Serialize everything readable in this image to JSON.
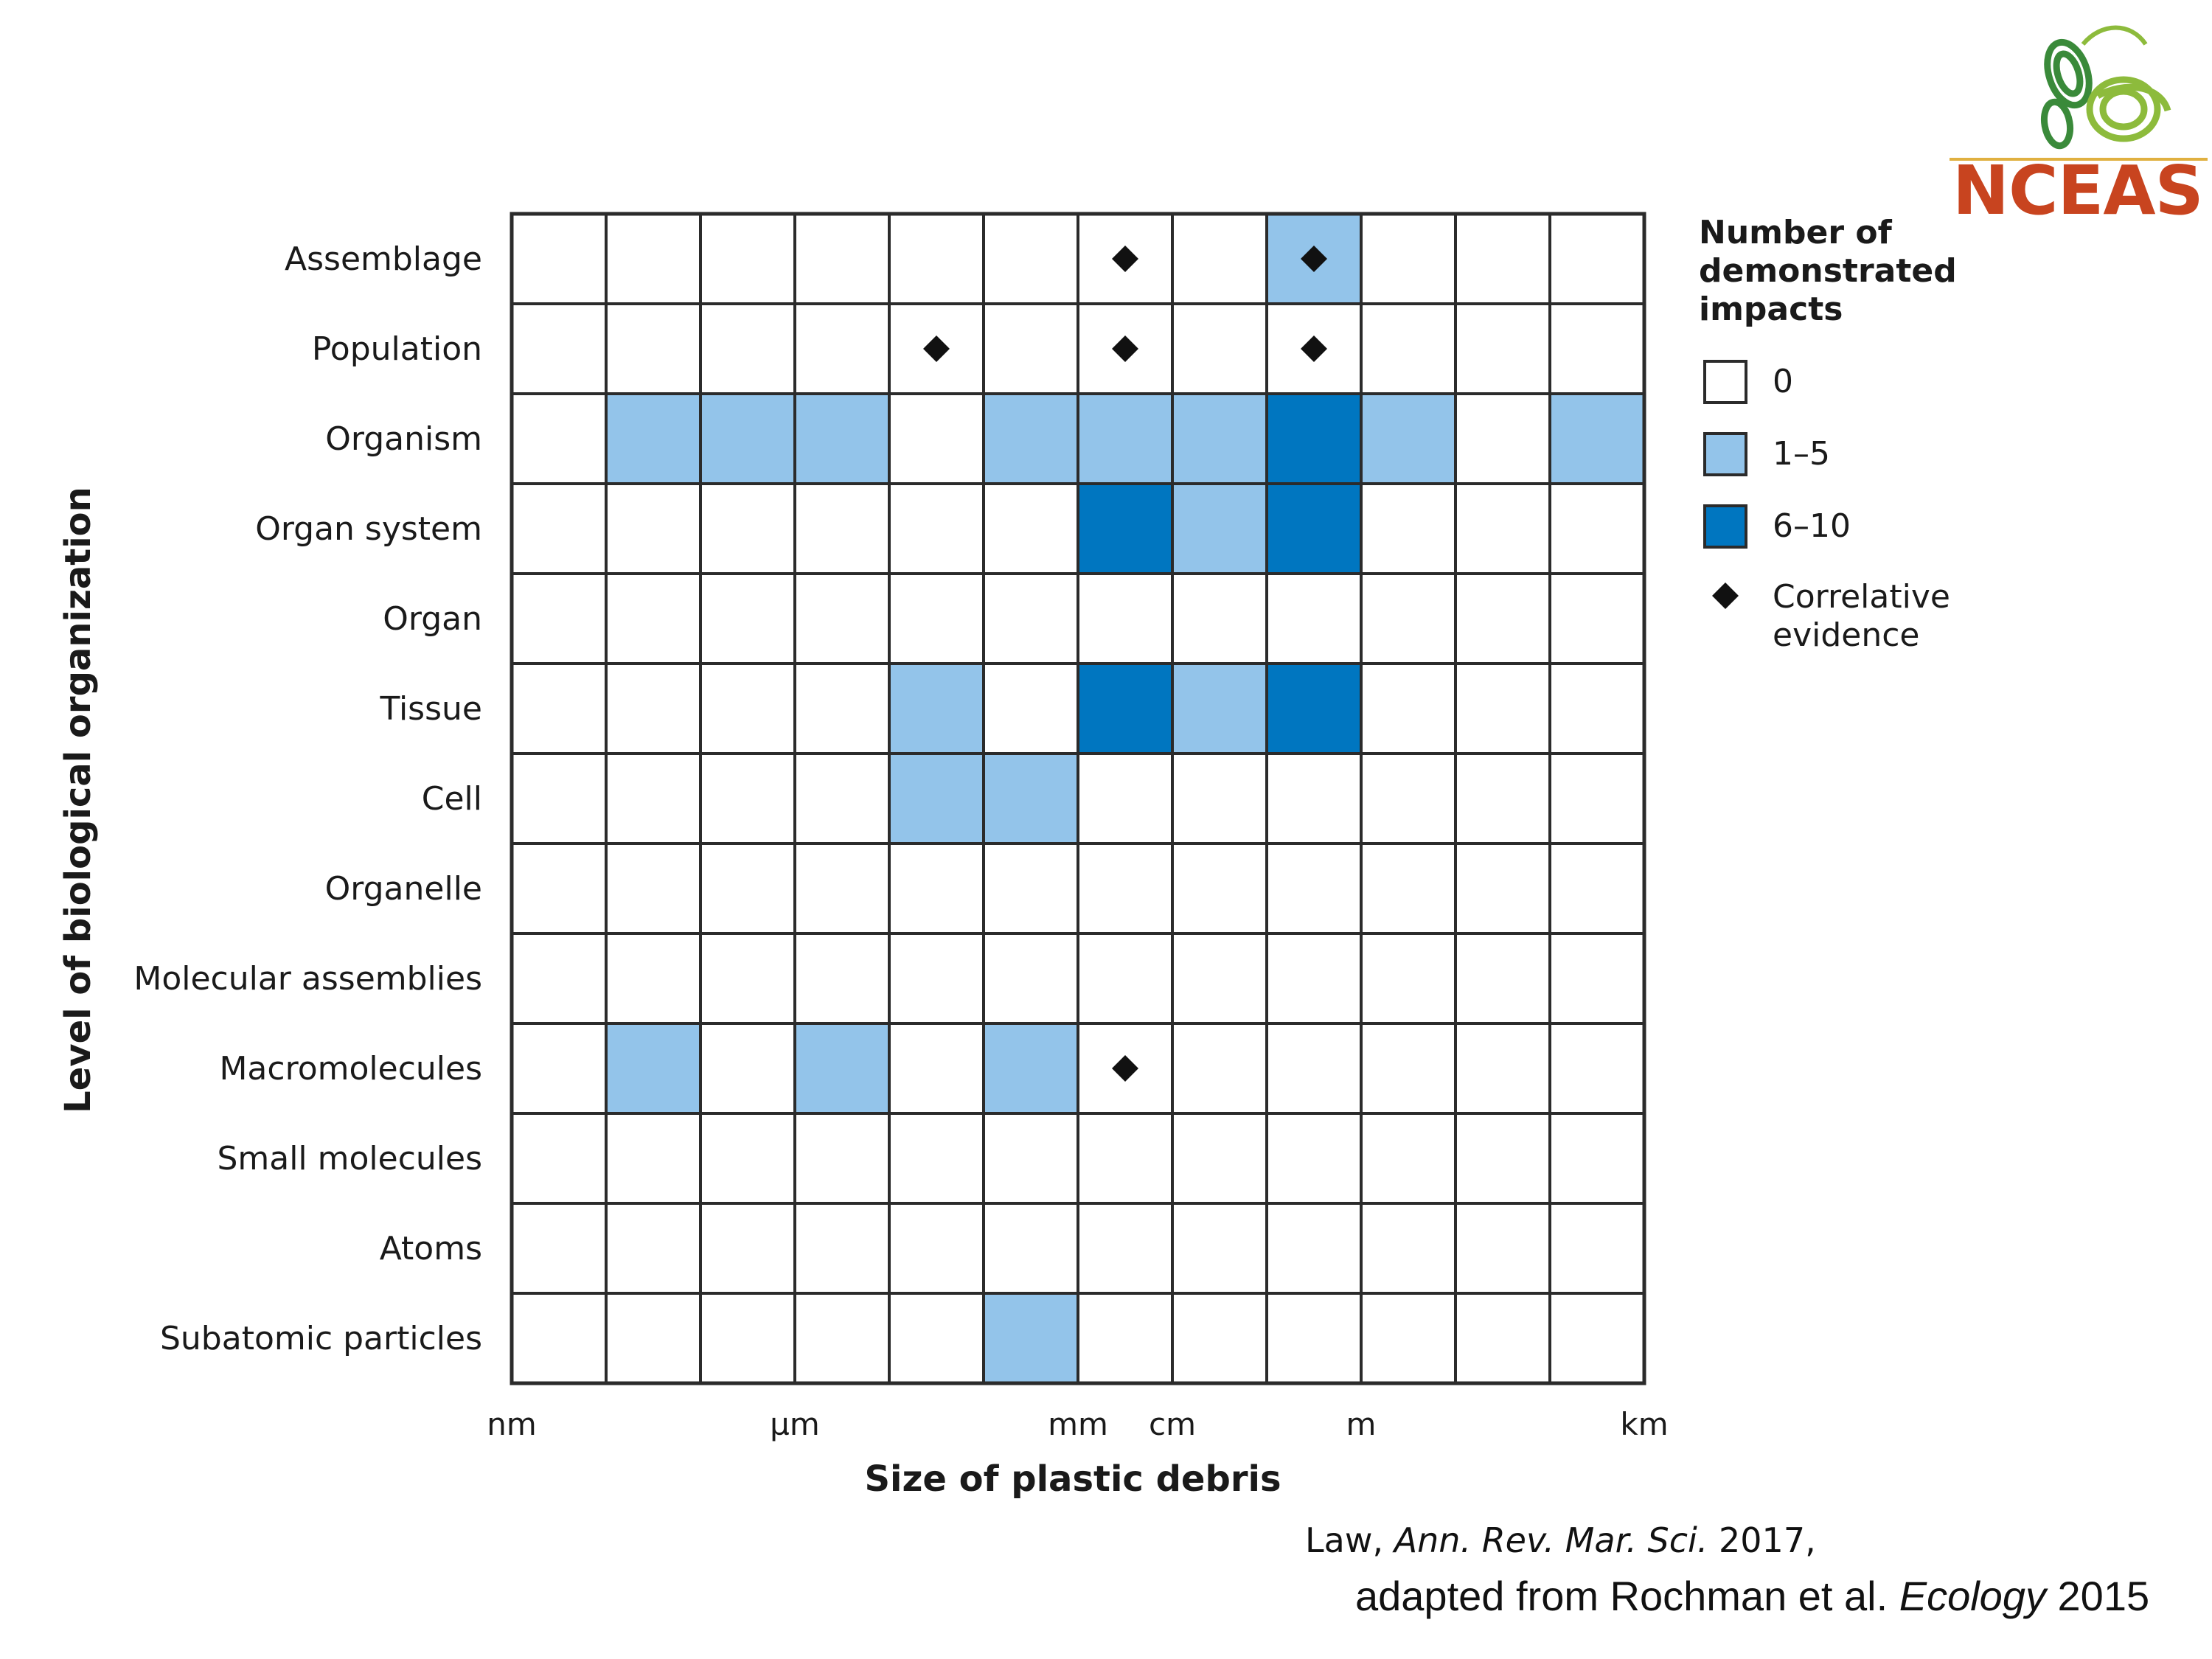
{
  "chart_data": {
    "type": "heatmap",
    "title": "",
    "xlabel": "Size of plastic debris",
    "ylabel": "Level of biological organization",
    "rows": [
      "Assemblage",
      "Population",
      "Organism",
      "Organ system",
      "Organ",
      "Tissue",
      "Cell",
      "Organelle",
      "Molecular assemblies",
      "Macromolecules",
      "Small molecules",
      "Atoms",
      "Subatomic particles"
    ],
    "column_count": 12,
    "x_ticks": [
      {
        "label": "nm",
        "boundary": 0
      },
      {
        "label": "µm",
        "boundary": 3
      },
      {
        "label": "mm",
        "boundary": 6
      },
      {
        "label": "cm",
        "boundary": 7
      },
      {
        "label": "m",
        "boundary": 9
      },
      {
        "label": "km",
        "boundary": 12
      }
    ],
    "categories_legend": [
      "0",
      "1–5",
      "6–10"
    ],
    "cells": [
      [
        0,
        0,
        0,
        0,
        0,
        0,
        0,
        0,
        1,
        0,
        0,
        0
      ],
      [
        0,
        0,
        0,
        0,
        0,
        0,
        0,
        0,
        0,
        0,
        0,
        0
      ],
      [
        0,
        1,
        1,
        1,
        0,
        1,
        1,
        1,
        2,
        1,
        0,
        1
      ],
      [
        0,
        0,
        0,
        0,
        0,
        0,
        2,
        1,
        2,
        0,
        0,
        0
      ],
      [
        0,
        0,
        0,
        0,
        0,
        0,
        0,
        0,
        0,
        0,
        0,
        0
      ],
      [
        0,
        0,
        0,
        0,
        1,
        0,
        2,
        1,
        2,
        0,
        0,
        0
      ],
      [
        0,
        0,
        0,
        0,
        1,
        1,
        0,
        0,
        0,
        0,
        0,
        0
      ],
      [
        0,
        0,
        0,
        0,
        0,
        0,
        0,
        0,
        0,
        0,
        0,
        0
      ],
      [
        0,
        0,
        0,
        0,
        0,
        0,
        0,
        0,
        0,
        0,
        0,
        0
      ],
      [
        0,
        1,
        0,
        1,
        0,
        1,
        0,
        0,
        0,
        0,
        0,
        0
      ],
      [
        0,
        0,
        0,
        0,
        0,
        0,
        0,
        0,
        0,
        0,
        0,
        0
      ],
      [
        0,
        0,
        0,
        0,
        0,
        0,
        0,
        0,
        0,
        0,
        0,
        0
      ],
      [
        0,
        0,
        0,
        0,
        0,
        1,
        0,
        0,
        0,
        0,
        0,
        0
      ]
    ],
    "correlative_evidence": [
      {
        "row": "Assemblage",
        "col": 6
      },
      {
        "row": "Assemblage",
        "col": 8
      },
      {
        "row": "Population",
        "col": 4
      },
      {
        "row": "Population",
        "col": 6
      },
      {
        "row": "Population",
        "col": 8
      },
      {
        "row": "Macromolecules",
        "col": 6
      }
    ],
    "colors": {
      "0": "#ffffff",
      "1–5": "#93c4ea",
      "6–10": "#0076c0"
    },
    "legend": {
      "title": [
        "Number of",
        "demonstrated",
        "impacts"
      ],
      "items": [
        "0",
        "1–5",
        "6–10"
      ],
      "marker_label": [
        "Correlative",
        "evidence"
      ],
      "placement": "right"
    }
  },
  "citation": {
    "line1_author": "Law, ",
    "line1_journal": "Ann. Rev. Mar. Sci.",
    "line1_year": " 2017,",
    "line2_prefix": "adapted from Rochman et al. ",
    "line2_journal": "Ecology",
    "line2_year": " 2015"
  },
  "logo": {
    "text": "NCEAS",
    "icon": "butterfly-icon",
    "text_color": "#c8441f",
    "icon_color": "#3a8a3a"
  }
}
